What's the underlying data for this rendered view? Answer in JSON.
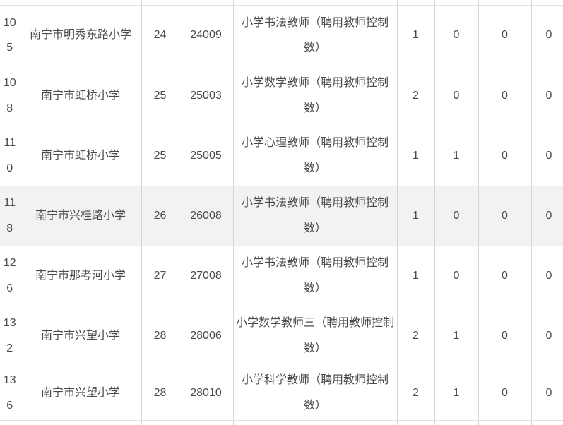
{
  "table": {
    "description_note": "",
    "rows": [
      {
        "highlighted": false,
        "cells": [
          "105",
          "南宁市明秀东路小学",
          "24",
          "24009",
          "小学书法教师（聘用教师控制数）",
          "1",
          "0",
          "0",
          "0"
        ]
      },
      {
        "highlighted": false,
        "cells": [
          "108",
          "南宁市虹桥小学",
          "25",
          "25003",
          "小学数学教师（聘用教师控制数）",
          "2",
          "0",
          "0",
          "0"
        ]
      },
      {
        "highlighted": false,
        "cells": [
          "110",
          "南宁市虹桥小学",
          "25",
          "25005",
          "小学心理教师（聘用教师控制数）",
          "1",
          "1",
          "0",
          "0"
        ]
      },
      {
        "highlighted": true,
        "cells": [
          "118",
          "南宁市兴桂路小学",
          "26",
          "26008",
          "小学书法教师（聘用教师控制数）",
          "1",
          "0",
          "0",
          "0"
        ]
      },
      {
        "highlighted": false,
        "cells": [
          "126",
          "南宁市那考河小学",
          "27",
          "27008",
          "小学书法教师（聘用教师控制数）",
          "1",
          "0",
          "0",
          "0"
        ]
      },
      {
        "highlighted": false,
        "cells": [
          "132",
          "南宁市兴望小学",
          "28",
          "28006",
          "小学数学教师三（聘用教师控制数）",
          "2",
          "1",
          "0",
          "0"
        ]
      },
      {
        "highlighted": false,
        "cells": [
          "136",
          "南宁市兴望小学",
          "28",
          "28010",
          "小学科学教师（聘用教师控制数）",
          "2",
          "1",
          "0",
          "0"
        ]
      }
    ]
  },
  "colors": {
    "border_vertical": "#d6d6d6",
    "border_horizontal": "#e2e2e2",
    "text": "#4a4a4a",
    "background": "#ffffff",
    "highlight_row_bg": "#f2f2f2"
  }
}
